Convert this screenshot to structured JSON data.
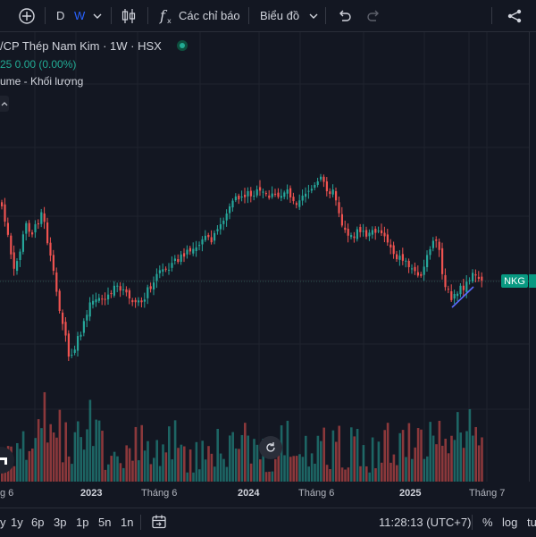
{
  "toolbar": {
    "interval_d": "D",
    "interval_w": "W",
    "indicators_label": "Các chỉ báo",
    "chart_type_label": "Biểu đồ"
  },
  "legend": {
    "symbol_title": "/CP Thép Nam Kim · 1W · HSX",
    "price_line": "25  0.00 (0.00%)",
    "volume_label": "ume - Khối lượng"
  },
  "price_tag": "NKG",
  "x_axis": {
    "labels": [
      "g 6",
      "2023",
      "Tháng 6",
      "2024",
      "Tháng 6",
      "2025",
      "Tháng 7"
    ]
  },
  "bottom_bar": {
    "ranges": [
      "y",
      "1y",
      "6p",
      "3p",
      "1p",
      "5n",
      "1n"
    ],
    "clock": "11:28:13 (UTC+7)",
    "percent": "%",
    "log": "log",
    "auto": "tu"
  },
  "colors": {
    "up": "#26a69a",
    "down": "#ef5350",
    "accent": "#2962ff",
    "background": "#131722"
  }
}
